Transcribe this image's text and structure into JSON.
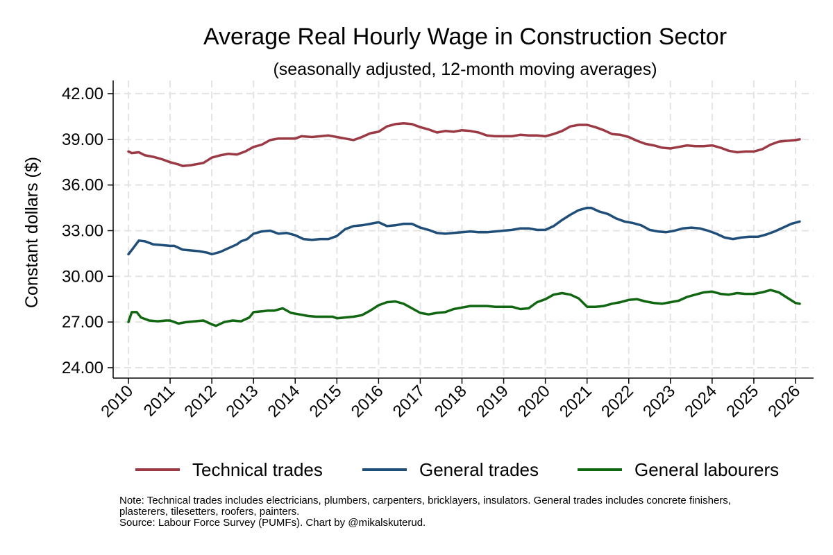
{
  "chart_data": {
    "type": "line",
    "title": "Average Real Hourly Wage in Construction Sector",
    "subtitle": "(seasonally adjusted, 12-month moving averages)",
    "ylabel": "Constant dollars ($)",
    "xlabel": "",
    "ylim": [
      24,
      42
    ],
    "y_ticks": [
      "24.00",
      "27.00",
      "30.00",
      "33.00",
      "36.00",
      "39.00",
      "42.00"
    ],
    "y_tick_values": [
      24,
      27,
      30,
      33,
      36,
      39,
      42
    ],
    "x_ticks": [
      "2010",
      "2011",
      "2012",
      "2013",
      "2014",
      "2015",
      "2016",
      "2017",
      "2018",
      "2019",
      "2020",
      "2021",
      "2022",
      "2023",
      "2024",
      "2025",
      "2026"
    ],
    "x_tick_values": [
      2010,
      2011,
      2012,
      2013,
      2014,
      2015,
      2016,
      2017,
      2018,
      2019,
      2020,
      2021,
      2022,
      2023,
      2024,
      2025,
      2026
    ],
    "xlim": [
      2010,
      2026
    ],
    "grid": true,
    "legend_position": "bottom",
    "series": [
      {
        "name": "Technical trades",
        "color": "#9b3a44",
        "points": [
          [
            2010.0,
            38.2
          ],
          [
            2010.08,
            38.1
          ],
          [
            2010.25,
            38.15
          ],
          [
            2010.4,
            37.95
          ],
          [
            2010.6,
            37.85
          ],
          [
            2010.8,
            37.7
          ],
          [
            2011.0,
            37.5
          ],
          [
            2011.2,
            37.35
          ],
          [
            2011.3,
            37.25
          ],
          [
            2011.5,
            37.3
          ],
          [
            2011.8,
            37.45
          ],
          [
            2012.0,
            37.8
          ],
          [
            2012.2,
            37.95
          ],
          [
            2012.4,
            38.05
          ],
          [
            2012.6,
            38.0
          ],
          [
            2012.8,
            38.2
          ],
          [
            2013.0,
            38.5
          ],
          [
            2013.2,
            38.65
          ],
          [
            2013.4,
            38.95
          ],
          [
            2013.6,
            39.05
          ],
          [
            2013.8,
            39.05
          ],
          [
            2014.0,
            39.05
          ],
          [
            2014.15,
            39.2
          ],
          [
            2014.4,
            39.15
          ],
          [
            2014.6,
            39.2
          ],
          [
            2014.8,
            39.25
          ],
          [
            2015.0,
            39.15
          ],
          [
            2015.2,
            39.05
          ],
          [
            2015.4,
            38.95
          ],
          [
            2015.6,
            39.15
          ],
          [
            2015.8,
            39.4
          ],
          [
            2016.0,
            39.5
          ],
          [
            2016.2,
            39.85
          ],
          [
            2016.4,
            40.0
          ],
          [
            2016.6,
            40.05
          ],
          [
            2016.8,
            40.0
          ],
          [
            2017.0,
            39.8
          ],
          [
            2017.2,
            39.65
          ],
          [
            2017.4,
            39.45
          ],
          [
            2017.6,
            39.55
          ],
          [
            2017.8,
            39.5
          ],
          [
            2018.0,
            39.6
          ],
          [
            2018.2,
            39.55
          ],
          [
            2018.4,
            39.45
          ],
          [
            2018.6,
            39.25
          ],
          [
            2018.8,
            39.2
          ],
          [
            2019.0,
            39.2
          ],
          [
            2019.2,
            39.2
          ],
          [
            2019.4,
            39.3
          ],
          [
            2019.6,
            39.25
          ],
          [
            2019.8,
            39.25
          ],
          [
            2020.0,
            39.2
          ],
          [
            2020.2,
            39.35
          ],
          [
            2020.4,
            39.55
          ],
          [
            2020.6,
            39.85
          ],
          [
            2020.8,
            39.95
          ],
          [
            2021.0,
            39.95
          ],
          [
            2021.2,
            39.8
          ],
          [
            2021.4,
            39.6
          ],
          [
            2021.6,
            39.35
          ],
          [
            2021.8,
            39.3
          ],
          [
            2022.0,
            39.15
          ],
          [
            2022.2,
            38.9
          ],
          [
            2022.4,
            38.7
          ],
          [
            2022.6,
            38.6
          ],
          [
            2022.8,
            38.45
          ],
          [
            2023.0,
            38.4
          ],
          [
            2023.2,
            38.5
          ],
          [
            2023.4,
            38.6
          ],
          [
            2023.6,
            38.55
          ],
          [
            2023.8,
            38.55
          ],
          [
            2024.0,
            38.6
          ],
          [
            2024.2,
            38.45
          ],
          [
            2024.4,
            38.25
          ],
          [
            2024.6,
            38.15
          ],
          [
            2024.8,
            38.2
          ],
          [
            2025.0,
            38.2
          ],
          [
            2025.2,
            38.35
          ],
          [
            2025.4,
            38.65
          ],
          [
            2025.6,
            38.85
          ],
          [
            2025.8,
            38.9
          ],
          [
            2026.0,
            38.95
          ],
          [
            2026.1,
            39.0
          ]
        ]
      },
      {
        "name": "General trades",
        "color": "#1f4e79",
        "points": [
          [
            2010.0,
            31.45
          ],
          [
            2010.1,
            31.8
          ],
          [
            2010.25,
            32.35
          ],
          [
            2010.4,
            32.3
          ],
          [
            2010.6,
            32.1
          ],
          [
            2010.8,
            32.05
          ],
          [
            2011.0,
            32.0
          ],
          [
            2011.1,
            32.0
          ],
          [
            2011.3,
            31.75
          ],
          [
            2011.5,
            31.7
          ],
          [
            2011.7,
            31.65
          ],
          [
            2011.9,
            31.55
          ],
          [
            2012.0,
            31.45
          ],
          [
            2012.2,
            31.6
          ],
          [
            2012.4,
            31.85
          ],
          [
            2012.6,
            32.1
          ],
          [
            2012.7,
            32.3
          ],
          [
            2012.85,
            32.45
          ],
          [
            2013.0,
            32.8
          ],
          [
            2013.2,
            32.95
          ],
          [
            2013.4,
            33.0
          ],
          [
            2013.6,
            32.8
          ],
          [
            2013.8,
            32.85
          ],
          [
            2014.0,
            32.7
          ],
          [
            2014.2,
            32.45
          ],
          [
            2014.4,
            32.4
          ],
          [
            2014.6,
            32.45
          ],
          [
            2014.8,
            32.45
          ],
          [
            2015.0,
            32.65
          ],
          [
            2015.2,
            33.1
          ],
          [
            2015.4,
            33.3
          ],
          [
            2015.6,
            33.35
          ],
          [
            2015.8,
            33.45
          ],
          [
            2016.0,
            33.55
          ],
          [
            2016.2,
            33.3
          ],
          [
            2016.4,
            33.35
          ],
          [
            2016.6,
            33.45
          ],
          [
            2016.8,
            33.45
          ],
          [
            2017.0,
            33.2
          ],
          [
            2017.2,
            33.05
          ],
          [
            2017.4,
            32.85
          ],
          [
            2017.6,
            32.8
          ],
          [
            2017.8,
            32.85
          ],
          [
            2018.0,
            32.9
          ],
          [
            2018.2,
            32.95
          ],
          [
            2018.4,
            32.9
          ],
          [
            2018.6,
            32.9
          ],
          [
            2018.8,
            32.95
          ],
          [
            2019.0,
            33.0
          ],
          [
            2019.2,
            33.05
          ],
          [
            2019.4,
            33.15
          ],
          [
            2019.6,
            33.15
          ],
          [
            2019.8,
            33.05
          ],
          [
            2020.0,
            33.05
          ],
          [
            2020.2,
            33.3
          ],
          [
            2020.4,
            33.7
          ],
          [
            2020.6,
            34.05
          ],
          [
            2020.8,
            34.35
          ],
          [
            2021.0,
            34.5
          ],
          [
            2021.1,
            34.5
          ],
          [
            2021.3,
            34.25
          ],
          [
            2021.5,
            34.1
          ],
          [
            2021.7,
            33.8
          ],
          [
            2021.9,
            33.6
          ],
          [
            2022.1,
            33.5
          ],
          [
            2022.3,
            33.35
          ],
          [
            2022.5,
            33.05
          ],
          [
            2022.7,
            32.95
          ],
          [
            2022.9,
            32.9
          ],
          [
            2023.1,
            33.0
          ],
          [
            2023.3,
            33.15
          ],
          [
            2023.5,
            33.2
          ],
          [
            2023.7,
            33.15
          ],
          [
            2023.9,
            33.0
          ],
          [
            2024.1,
            32.8
          ],
          [
            2024.3,
            32.55
          ],
          [
            2024.5,
            32.45
          ],
          [
            2024.7,
            32.55
          ],
          [
            2024.9,
            32.6
          ],
          [
            2025.1,
            32.6
          ],
          [
            2025.3,
            32.75
          ],
          [
            2025.5,
            32.95
          ],
          [
            2025.7,
            33.2
          ],
          [
            2025.9,
            33.45
          ],
          [
            2026.1,
            33.6
          ]
        ]
      },
      {
        "name": "General labourers",
        "color": "#116611",
        "points": [
          [
            2010.0,
            27.0
          ],
          [
            2010.08,
            27.65
          ],
          [
            2010.2,
            27.65
          ],
          [
            2010.3,
            27.3
          ],
          [
            2010.5,
            27.1
          ],
          [
            2010.7,
            27.05
          ],
          [
            2010.9,
            27.1
          ],
          [
            2011.0,
            27.1
          ],
          [
            2011.2,
            26.9
          ],
          [
            2011.4,
            27.0
          ],
          [
            2011.6,
            27.05
          ],
          [
            2011.8,
            27.1
          ],
          [
            2012.0,
            26.85
          ],
          [
            2012.1,
            26.75
          ],
          [
            2012.3,
            27.0
          ],
          [
            2012.5,
            27.1
          ],
          [
            2012.7,
            27.05
          ],
          [
            2012.9,
            27.3
          ],
          [
            2013.0,
            27.65
          ],
          [
            2013.2,
            27.7
          ],
          [
            2013.35,
            27.75
          ],
          [
            2013.5,
            27.75
          ],
          [
            2013.7,
            27.9
          ],
          [
            2013.9,
            27.6
          ],
          [
            2014.1,
            27.5
          ],
          [
            2014.3,
            27.4
          ],
          [
            2014.5,
            27.35
          ],
          [
            2014.7,
            27.35
          ],
          [
            2014.9,
            27.35
          ],
          [
            2015.0,
            27.25
          ],
          [
            2015.2,
            27.3
          ],
          [
            2015.4,
            27.35
          ],
          [
            2015.6,
            27.45
          ],
          [
            2015.8,
            27.75
          ],
          [
            2016.0,
            28.1
          ],
          [
            2016.2,
            28.3
          ],
          [
            2016.4,
            28.35
          ],
          [
            2016.6,
            28.2
          ],
          [
            2016.8,
            27.9
          ],
          [
            2017.0,
            27.6
          ],
          [
            2017.2,
            27.5
          ],
          [
            2017.4,
            27.6
          ],
          [
            2017.6,
            27.65
          ],
          [
            2017.8,
            27.85
          ],
          [
            2018.0,
            27.95
          ],
          [
            2018.2,
            28.05
          ],
          [
            2018.4,
            28.05
          ],
          [
            2018.6,
            28.05
          ],
          [
            2018.8,
            28.0
          ],
          [
            2019.0,
            28.0
          ],
          [
            2019.2,
            28.0
          ],
          [
            2019.4,
            27.85
          ],
          [
            2019.6,
            27.9
          ],
          [
            2019.8,
            28.3
          ],
          [
            2020.0,
            28.5
          ],
          [
            2020.2,
            28.8
          ],
          [
            2020.4,
            28.9
          ],
          [
            2020.6,
            28.8
          ],
          [
            2020.8,
            28.55
          ],
          [
            2021.0,
            28.0
          ],
          [
            2021.2,
            28.0
          ],
          [
            2021.4,
            28.05
          ],
          [
            2021.6,
            28.2
          ],
          [
            2021.8,
            28.3
          ],
          [
            2022.0,
            28.45
          ],
          [
            2022.2,
            28.5
          ],
          [
            2022.4,
            28.35
          ],
          [
            2022.6,
            28.25
          ],
          [
            2022.8,
            28.2
          ],
          [
            2023.0,
            28.3
          ],
          [
            2023.2,
            28.4
          ],
          [
            2023.4,
            28.65
          ],
          [
            2023.6,
            28.8
          ],
          [
            2023.8,
            28.95
          ],
          [
            2024.0,
            29.0
          ],
          [
            2024.2,
            28.85
          ],
          [
            2024.4,
            28.8
          ],
          [
            2024.6,
            28.9
          ],
          [
            2024.8,
            28.85
          ],
          [
            2025.0,
            28.85
          ],
          [
            2025.2,
            28.95
          ],
          [
            2025.4,
            29.1
          ],
          [
            2025.6,
            28.95
          ],
          [
            2025.8,
            28.6
          ],
          [
            2026.0,
            28.25
          ],
          [
            2026.1,
            28.2
          ]
        ]
      }
    ]
  },
  "note_lines": [
    "Note: Technical trades includes electricians, plumbers, carpenters, bricklayers, insulators. General trades includes concrete finishers,",
    "plasterers, tilesetters, roofers, painters.",
    "Source: Labour Force Survey (PUMFs). Chart by @mikalskuterud."
  ]
}
